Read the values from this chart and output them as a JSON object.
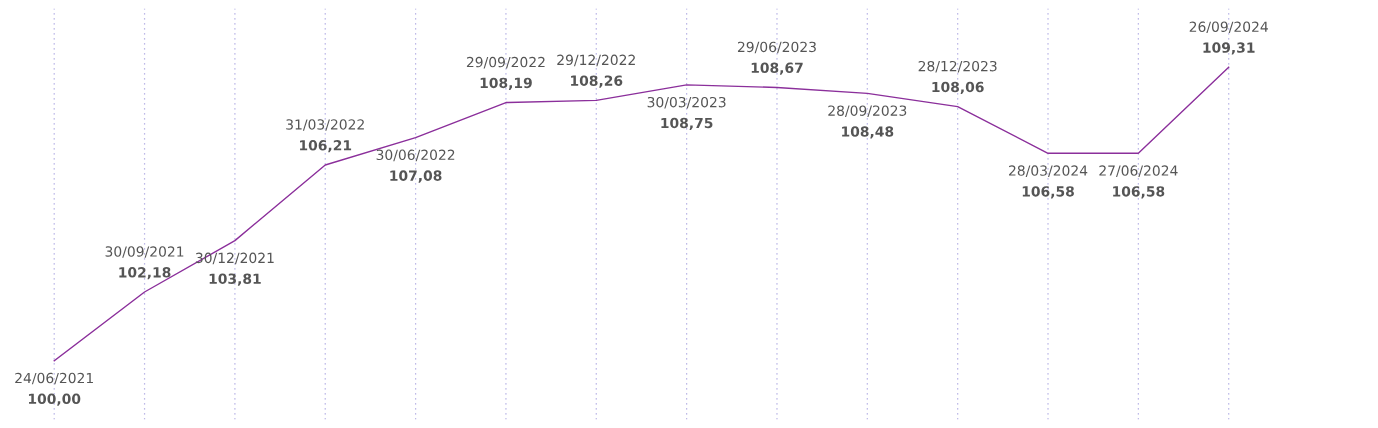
{
  "chart_data": {
    "type": "line",
    "categories": [
      "24/06/2021",
      "30/09/2021",
      "30/12/2021",
      "31/03/2022",
      "30/06/2022",
      "29/09/2022",
      "29/12/2022",
      "30/03/2023",
      "29/06/2023",
      "28/09/2023",
      "28/12/2023",
      "28/03/2024",
      "27/06/2024",
      "26/09/2024"
    ],
    "series": [
      {
        "color": "#8b2f9b",
        "values": [
          100.0,
          102.18,
          103.81,
          106.21,
          107.08,
          108.19,
          108.26,
          108.75,
          108.67,
          108.48,
          108.06,
          106.58,
          106.58,
          109.31
        ],
        "value_labels": [
          "100,00",
          "102,18",
          "103,81",
          "106,21",
          "107,08",
          "108,19",
          "108,26",
          "108,75",
          "108,67",
          "108,48",
          "108,06",
          "106,58",
          "106,58",
          "109,31"
        ]
      }
    ],
    "grid": "x",
    "tick_labels": false,
    "marker": "none",
    "line_style": "solid"
  }
}
